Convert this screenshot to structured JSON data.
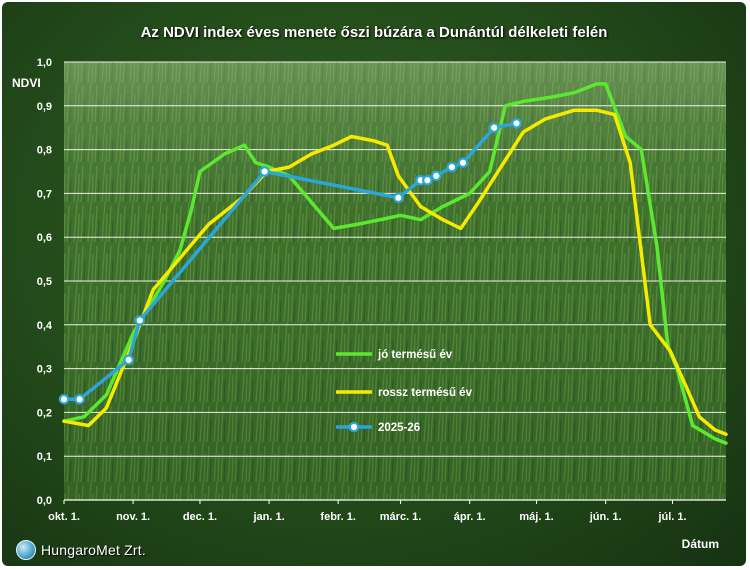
{
  "title": "Az NDVI index éves menete őszi búzára a Dunántúl délkeleti felén",
  "logo_text": "HungaroMet Zrt.",
  "colors": {
    "jo": "#5ce830",
    "rossz": "#f5ea00",
    "current": "#2aa6d8",
    "grid": "#ffffff"
  },
  "chart_data": {
    "type": "line",
    "title": "Az NDVI index éves menete őszi búzára a Dunántúl délkeleti felén",
    "xlabel": "Dátum",
    "ylabel": "NDVI",
    "ylim": [
      0,
      1
    ],
    "yticks": [
      "0,0",
      "0,1",
      "0,2",
      "0,3",
      "0,4",
      "0,5",
      "0,6",
      "0,7",
      "0,8",
      "0,9",
      "1,0"
    ],
    "xlim": [
      "10-01",
      "07-25"
    ],
    "xticks": [
      {
        "label": "okt. 1.",
        "date": "10-01"
      },
      {
        "label": "nov. 1.",
        "date": "11-01"
      },
      {
        "label": "dec. 1.",
        "date": "12-01"
      },
      {
        "label": "jan. 1.",
        "date": "01-01"
      },
      {
        "label": "febr. 1.",
        "date": "02-01"
      },
      {
        "label": "márc. 1.",
        "date": "03-01"
      },
      {
        "label": "ápr. 1.",
        "date": "04-01"
      },
      {
        "label": "máj. 1.",
        "date": "05-01"
      },
      {
        "label": "jún. 1.",
        "date": "06-01"
      },
      {
        "label": "júl. 1.",
        "date": "07-01"
      }
    ],
    "grid": true,
    "legend_position": "center-right",
    "series": [
      {
        "name": "jó termésű év",
        "color": "#5ce830",
        "points": [
          [
            "10-01",
            0.18
          ],
          [
            "10-10",
            0.19
          ],
          [
            "10-20",
            0.24
          ],
          [
            "11-01",
            0.38
          ],
          [
            "11-15",
            0.5
          ],
          [
            "11-22",
            0.57
          ],
          [
            "11-27",
            0.66
          ],
          [
            "12-01",
            0.75
          ],
          [
            "12-12",
            0.79
          ],
          [
            "12-21",
            0.81
          ],
          [
            "12-26",
            0.77
          ],
          [
            "01-01",
            0.76
          ],
          [
            "01-10",
            0.74
          ],
          [
            "01-20",
            0.68
          ],
          [
            "01-30",
            0.62
          ],
          [
            "02-10",
            0.63
          ],
          [
            "02-20",
            0.64
          ],
          [
            "03-01",
            0.65
          ],
          [
            "03-10",
            0.64
          ],
          [
            "03-20",
            0.67
          ],
          [
            "04-01",
            0.7
          ],
          [
            "04-10",
            0.75
          ],
          [
            "04-17",
            0.9
          ],
          [
            "04-25",
            0.91
          ],
          [
            "05-08",
            0.92
          ],
          [
            "05-18",
            0.93
          ],
          [
            "05-28",
            0.95
          ],
          [
            "06-01",
            0.95
          ],
          [
            "06-10",
            0.83
          ],
          [
            "06-17",
            0.8
          ],
          [
            "06-24",
            0.58
          ],
          [
            "06-29",
            0.35
          ],
          [
            "07-03",
            0.3
          ],
          [
            "07-10",
            0.17
          ],
          [
            "07-20",
            0.14
          ],
          [
            "07-25",
            0.13
          ]
        ]
      },
      {
        "name": "rossz termésű év",
        "color": "#f5ea00",
        "points": [
          [
            "10-01",
            0.18
          ],
          [
            "10-12",
            0.17
          ],
          [
            "10-20",
            0.21
          ],
          [
            "11-01",
            0.36
          ],
          [
            "11-10",
            0.48
          ],
          [
            "11-25",
            0.57
          ],
          [
            "12-05",
            0.63
          ],
          [
            "12-20",
            0.69
          ],
          [
            "12-31",
            0.75
          ],
          [
            "01-10",
            0.76
          ],
          [
            "01-20",
            0.79
          ],
          [
            "01-30",
            0.81
          ],
          [
            "02-07",
            0.83
          ],
          [
            "02-17",
            0.82
          ],
          [
            "02-23",
            0.81
          ],
          [
            "02-28",
            0.74
          ],
          [
            "03-10",
            0.67
          ],
          [
            "03-20",
            0.64
          ],
          [
            "03-28",
            0.62
          ],
          [
            "04-05",
            0.68
          ],
          [
            "04-15",
            0.76
          ],
          [
            "04-25",
            0.84
          ],
          [
            "05-05",
            0.87
          ],
          [
            "05-18",
            0.89
          ],
          [
            "05-28",
            0.89
          ],
          [
            "06-05",
            0.88
          ],
          [
            "06-12",
            0.77
          ],
          [
            "06-21",
            0.4
          ],
          [
            "06-30",
            0.34
          ],
          [
            "07-07",
            0.26
          ],
          [
            "07-13",
            0.19
          ],
          [
            "07-20",
            0.16
          ],
          [
            "07-25",
            0.15
          ]
        ]
      },
      {
        "name": "2025-26",
        "color": "#2aa6d8",
        "markers": true,
        "points": [
          [
            "10-01",
            0.23
          ],
          [
            "10-08",
            0.23
          ],
          [
            "10-30",
            0.32
          ],
          [
            "11-04",
            0.41
          ],
          [
            "12-30",
            0.75
          ],
          [
            "02-28",
            0.69
          ],
          [
            "03-10",
            0.73
          ],
          [
            "03-13",
            0.73
          ],
          [
            "03-17",
            0.74
          ],
          [
            "03-24",
            0.76
          ],
          [
            "03-29",
            0.77
          ],
          [
            "04-12",
            0.85
          ],
          [
            "04-22",
            0.86
          ]
        ]
      }
    ]
  }
}
